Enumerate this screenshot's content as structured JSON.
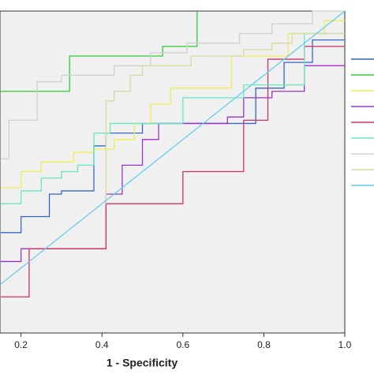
{
  "chart_data": {
    "type": "line",
    "x_label": "1 - Specificity",
    "xlim": [
      0.15,
      1.0
    ],
    "ylim": [
      0,
      1
    ],
    "xticks": [
      0.2,
      0.4,
      0.6,
      0.8,
      {
        "value": 1,
        "label": "1.0"
      }
    ],
    "series": [
      {
        "color": "#3366cc",
        "x": [
          0.15,
          0.2,
          0.2,
          0.27,
          0.27,
          0.3,
          0.3,
          0.38,
          0.38,
          0.41,
          0.41,
          0.5,
          0.5,
          0.78,
          0.78,
          0.85,
          0.85,
          0.92,
          0.92,
          1.0
        ],
        "values": [
          0.31,
          0.31,
          0.36,
          0.36,
          0.43,
          0.43,
          0.44,
          0.44,
          0.58,
          0.58,
          0.62,
          0.62,
          0.65,
          0.65,
          0.76,
          0.76,
          0.84,
          0.84,
          0.91,
          0.91
        ]
      },
      {
        "color": "#33cc33",
        "x": [
          0.15,
          0.32,
          0.32,
          0.55,
          0.55,
          0.635,
          0.635
        ],
        "values": [
          0.75,
          0.75,
          0.86,
          0.86,
          0.89,
          0.89,
          1.0
        ]
      },
      {
        "color": "#eeee55",
        "x": [
          0.15,
          0.2,
          0.2,
          0.25,
          0.25,
          0.33,
          0.33,
          0.38,
          0.38,
          0.43,
          0.43,
          0.48,
          0.48,
          0.52,
          0.52,
          0.57,
          0.57,
          0.72,
          0.72,
          0.86,
          0.86,
          0.95,
          0.95,
          1.0
        ],
        "values": [
          0.45,
          0.45,
          0.5,
          0.5,
          0.53,
          0.53,
          0.56,
          0.56,
          0.57,
          0.57,
          0.6,
          0.6,
          0.65,
          0.65,
          0.71,
          0.71,
          0.76,
          0.76,
          0.86,
          0.86,
          0.93,
          0.93,
          0.97,
          0.97
        ]
      },
      {
        "color": "#9933cc",
        "x": [
          0.15,
          0.2,
          0.2,
          0.41,
          0.41,
          0.45,
          0.45,
          0.5,
          0.5,
          0.54,
          0.54,
          0.71,
          0.71,
          0.75,
          0.75,
          0.82,
          0.82,
          0.9,
          0.9,
          1.0
        ],
        "values": [
          0.22,
          0.22,
          0.26,
          0.26,
          0.43,
          0.43,
          0.52,
          0.52,
          0.6,
          0.6,
          0.65,
          0.65,
          0.67,
          0.67,
          0.73,
          0.73,
          0.75,
          0.75,
          0.83,
          0.83
        ]
      },
      {
        "color": "#cc3366",
        "x": [
          0.15,
          0.22,
          0.22,
          0.41,
          0.41,
          0.6,
          0.6,
          0.75,
          0.75,
          0.81,
          0.81,
          0.9,
          0.9,
          1.0
        ],
        "values": [
          0.11,
          0.11,
          0.26,
          0.26,
          0.4,
          0.4,
          0.5,
          0.5,
          0.66,
          0.66,
          0.85,
          0.85,
          0.89,
          0.89
        ]
      },
      {
        "color": "#66e8c0",
        "x": [
          0.15,
          0.2,
          0.2,
          0.25,
          0.25,
          0.3,
          0.3,
          0.34,
          0.34,
          0.38,
          0.38,
          0.42,
          0.42,
          0.6,
          0.6,
          0.75,
          0.75,
          0.9,
          0.9,
          1.0
        ],
        "values": [
          0.4,
          0.4,
          0.44,
          0.44,
          0.48,
          0.48,
          0.5,
          0.5,
          0.52,
          0.52,
          0.62,
          0.62,
          0.65,
          0.65,
          0.73,
          0.73,
          0.77,
          0.77,
          0.93,
          0.93
        ]
      },
      {
        "color": "#d0d0d0",
        "x": [
          0.15,
          0.17,
          0.17,
          0.24,
          0.24,
          0.3,
          0.3,
          0.43,
          0.43,
          0.52,
          0.52,
          0.61,
          0.61,
          0.74,
          0.74,
          0.82,
          0.82,
          0.92,
          0.92,
          1.0
        ],
        "values": [
          0.54,
          0.54,
          0.66,
          0.66,
          0.78,
          0.78,
          0.8,
          0.8,
          0.83,
          0.83,
          0.87,
          0.87,
          0.9,
          0.9,
          0.93,
          0.93,
          0.96,
          0.96,
          1.0,
          1.0
        ]
      },
      {
        "color": "#d8d8a0",
        "x": [
          0.41,
          0.41,
          0.43,
          0.43,
          0.47,
          0.47,
          0.5,
          0.5,
          0.62,
          0.62,
          0.75,
          0.75,
          0.82,
          0.82,
          0.87,
          0.87,
          1.0
        ],
        "values": [
          0.4,
          0.72,
          0.72,
          0.75,
          0.75,
          0.8,
          0.8,
          0.83,
          0.83,
          0.86,
          0.86,
          0.88,
          0.88,
          0.9,
          0.9,
          0.93,
          0.93
        ]
      },
      {
        "color": "#66ccee",
        "x": [
          0.15,
          1.0
        ],
        "values": [
          0.15,
          1.0
        ]
      }
    ]
  }
}
